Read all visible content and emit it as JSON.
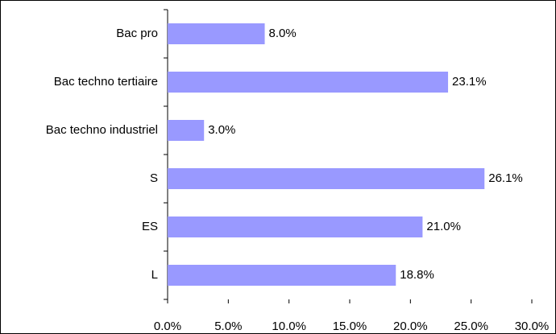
{
  "chart_data": {
    "type": "hbar",
    "categories": [
      "Bac pro",
      "Bac techno tertiaire",
      "Bac techno industriel",
      "S",
      "ES",
      "L"
    ],
    "values": [
      8.0,
      23.1,
      3.0,
      26.1,
      21.0,
      18.8
    ],
    "value_labels": [
      "8.0%",
      "23.1%",
      "3.0%",
      "26.1%",
      "21.0%",
      "18.8%"
    ],
    "color": "#9999ff",
    "xlim": [
      0,
      30
    ],
    "xticks": [
      {
        "value": 0,
        "label": "0.0%"
      },
      {
        "value": 5,
        "label": "5.0%"
      },
      {
        "value": 10,
        "label": "10.0%"
      },
      {
        "value": 15,
        "label": "15.0%"
      },
      {
        "value": 20,
        "label": "20.0%"
      },
      {
        "value": 25,
        "label": "25.0%"
      },
      {
        "value": 30,
        "label": "30.0%"
      }
    ],
    "grid": false
  }
}
